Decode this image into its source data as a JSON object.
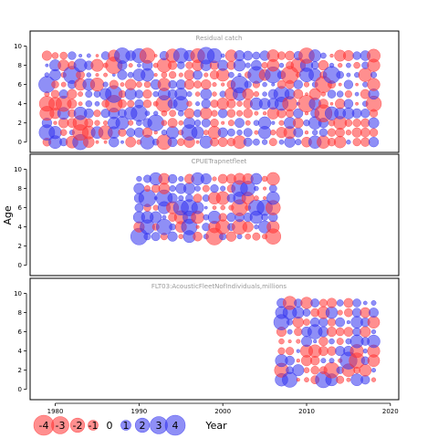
{
  "chart_data": {
    "type": "scatter",
    "ylabel": "Age",
    "xlabel": "Year",
    "xlim": [
      1977,
      2021
    ],
    "x_ticks": [
      1980,
      1990,
      2000,
      2010,
      2020
    ],
    "ylim": [
      -0.5,
      11
    ],
    "y_ticks": [
      0,
      2,
      4,
      6,
      8,
      10
    ],
    "size_encoding": "bubble area proportional to absolute residual; blue = positive, red = negative",
    "colors": {
      "positive": "#3333ee",
      "negative": "#ff3333",
      "frame": "#000000",
      "title": "#999999"
    },
    "legend": {
      "position": "bottom-left",
      "values": [
        -4,
        -3,
        -2,
        -1,
        0,
        1,
        2,
        3,
        4
      ],
      "labels": [
        "-4",
        "-3",
        "-2",
        "-1",
        "0",
        "1",
        "2",
        "3",
        "4"
      ]
    },
    "panels": [
      {
        "title": "Residual catch",
        "years": [
          1979,
          2018
        ],
        "ages": [
          0,
          9
        ]
      },
      {
        "title": "CPUETrapnetfleet",
        "years": [
          1990,
          2006
        ],
        "ages": [
          3,
          9
        ]
      },
      {
        "title": "FLT03:AcousticFleetNofIndividuals,millions",
        "years": [
          2007,
          2018
        ],
        "ages": [
          1,
          9
        ]
      }
    ]
  }
}
